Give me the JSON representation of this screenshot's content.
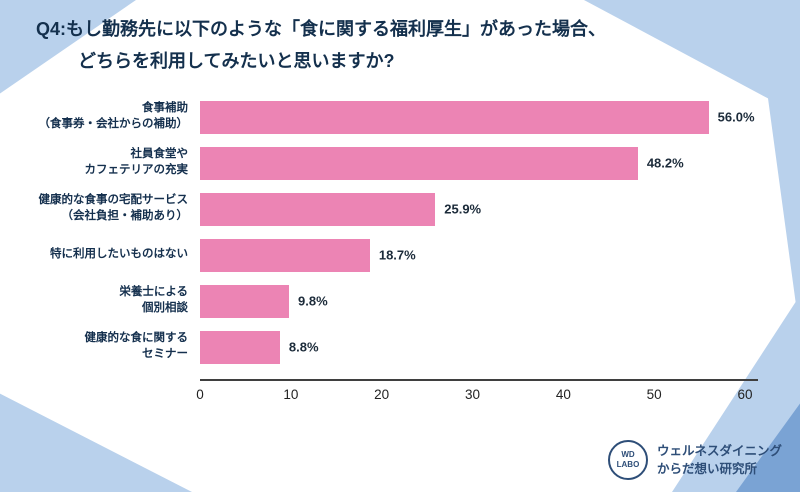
{
  "title": {
    "line1": "Q4:もし勤務先に以下のような「食に関する福利厚生」があった場合、",
    "line2": "どちらを利用してみたいと思いますか?"
  },
  "chart_data": {
    "type": "bar",
    "orientation": "horizontal",
    "title": "Q4:もし勤務先に以下のような「食に関する福利厚生」があった場合、どちらを利用してみたいと思いますか?",
    "categories": [
      "食事補助\n（食事券・会社からの補助）",
      "社員食堂や\nカフェテリアの充実",
      "健康的な食事の宅配サービス\n（会社負担・補助あり）",
      "特に利用したいものはない",
      "栄養士による\n個別相談",
      "健康的な食に関する\nセミナー"
    ],
    "values": [
      56.0,
      48.2,
      25.9,
      18.7,
      9.8,
      8.8
    ],
    "value_labels": [
      "56.0%",
      "48.2%",
      "25.9%",
      "18.7%",
      "9.8%",
      "8.8%"
    ],
    "xlim": [
      0,
      60
    ],
    "x_ticks": [
      0,
      10,
      20,
      30,
      40,
      50,
      60
    ],
    "xlabel": "",
    "ylabel": "",
    "grid": false,
    "legend": "none",
    "bar_color": "#ec84b4"
  },
  "colors": {
    "bar_pink": "#ec84b4",
    "background_blue": "#b9d1ec",
    "accent_blue": "#7aa3d4",
    "text_navy": "#14304d"
  },
  "footer": {
    "logo_line1": "WD",
    "logo_line2": "LABO",
    "brand_line1": "ウェルネスダイニング",
    "brand_line2": "からだ想い研究所"
  }
}
